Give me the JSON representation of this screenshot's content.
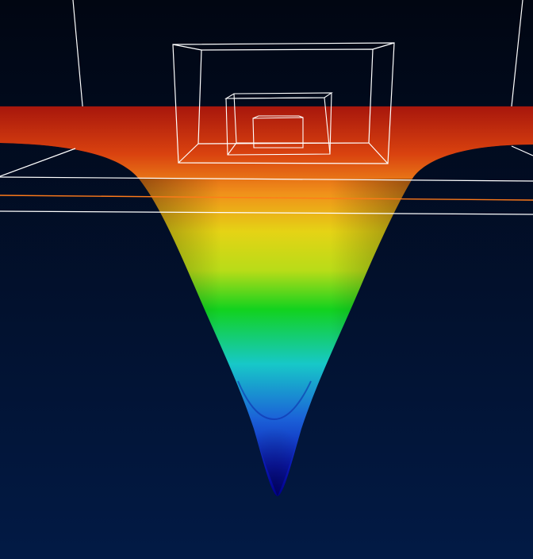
{
  "scene": {
    "background_gradient": [
      "#010612",
      "#021a45"
    ],
    "colormap": [
      "#00008f",
      "#1b45d2",
      "#15c7c9",
      "#10d020",
      "#d8e212",
      "#f07b12",
      "#c62d0e",
      "#a8170c"
    ],
    "wireframe_color": "#ffffff",
    "slice_line_color": "#ff7a1a",
    "wireframe_boxes": 3
  }
}
